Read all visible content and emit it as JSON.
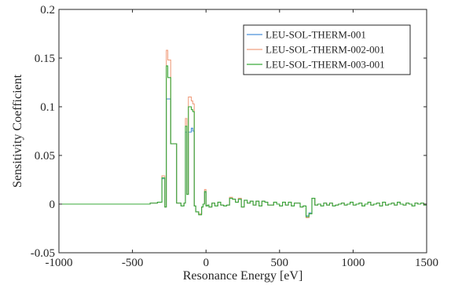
{
  "chart_data": {
    "type": "line",
    "title": "",
    "xlabel": "Resonance Energy [eV]",
    "ylabel": "Sensitivity Coefficient",
    "xlim": [
      -1000,
      1500
    ],
    "ylim": [
      -0.05,
      0.2
    ],
    "xticks": [
      -1000,
      -500,
      0,
      500,
      1000,
      1500
    ],
    "xtick_labels": [
      "-1000",
      "-500",
      "0",
      "500",
      "1000",
      "1500"
    ],
    "yticks": [
      -0.05,
      0,
      0.05,
      0.1,
      0.15,
      0.2
    ],
    "ytick_labels": [
      "-0.05",
      "0",
      "0.05",
      "0.1",
      "0.15",
      "0.2"
    ],
    "grid": false,
    "legend_position": "top-right",
    "step": true,
    "x": [
      -1000,
      -420,
      -380,
      -330,
      -300,
      -280,
      -270,
      -260,
      -240,
      -200,
      -170,
      -150,
      -140,
      -130,
      -120,
      -100,
      -90,
      -80,
      -70,
      -50,
      -30,
      -20,
      -10,
      0,
      10,
      20,
      40,
      60,
      80,
      100,
      120,
      140,
      160,
      180,
      200,
      220,
      240,
      260,
      280,
      300,
      320,
      340,
      360,
      380,
      400,
      420,
      440,
      460,
      480,
      500,
      520,
      540,
      560,
      580,
      600,
      620,
      640,
      660,
      680,
      700,
      720,
      740,
      760,
      780,
      800,
      820,
      840,
      860,
      880,
      900,
      920,
      940,
      960,
      980,
      1000,
      1020,
      1040,
      1060,
      1080,
      1100,
      1120,
      1140,
      1160,
      1180,
      1200,
      1220,
      1240,
      1260,
      1280,
      1300,
      1320,
      1340,
      1360,
      1380,
      1400,
      1420,
      1440,
      1460,
      1480,
      1500
    ],
    "series": [
      {
        "name": "LEU-SOL-THERM-001",
        "color": "#4a90d9",
        "values": [
          0,
          0,
          0.001,
          0.002,
          0.026,
          -0.003,
          0.108,
          0.108,
          0.062,
          0.001,
          -0.002,
          0.001,
          0.074,
          0.01,
          0.074,
          0.078,
          0.075,
          -0.002,
          -0.008,
          -0.01,
          -0.003,
          0,
          0.012,
          -0.002,
          -0.001,
          -0.003,
          0.001,
          -0.002,
          0.002,
          -0.001,
          -0.002,
          -0.001,
          0.006,
          0.005,
          0.002,
          0.005,
          -0.003,
          0.004,
          0.001,
          0.003,
          -0.001,
          0.003,
          -0.002,
          0.003,
          0.002,
          -0.001,
          -0.001,
          0.002,
          0,
          -0.002,
          0.002,
          -0.001,
          0.002,
          -0.002,
          0.001,
          0.001,
          -0.003,
          -0.002,
          -0.012,
          -0.009,
          0.006,
          -0.001,
          0,
          -0.002,
          0.001,
          -0.001,
          0.001,
          -0.002,
          -0.001,
          0,
          0.001,
          -0.001,
          0,
          0.002,
          -0.001,
          0,
          0.001,
          -0.002,
          0,
          0.002,
          -0.001,
          0,
          0.001,
          -0.002,
          0.002,
          -0.001,
          0,
          0.001,
          -0.001,
          0.002,
          0,
          -0.001,
          0.001,
          0,
          -0.002,
          0.001,
          0,
          0.001,
          -0.001,
          -0.001
        ]
      },
      {
        "name": "LEU-SOL-THERM-002-001",
        "color": "#f0a080",
        "values": [
          0,
          0,
          0.001,
          0.002,
          0.029,
          -0.003,
          0.158,
          0.148,
          0.062,
          0.001,
          -0.002,
          0.001,
          0.088,
          0.01,
          0.11,
          0.106,
          0.103,
          -0.002,
          -0.008,
          -0.01,
          -0.003,
          0,
          0.015,
          -0.002,
          -0.001,
          -0.003,
          0.001,
          -0.002,
          0.002,
          -0.001,
          -0.002,
          -0.001,
          0.007,
          0.005,
          0.002,
          0.006,
          -0.003,
          0.004,
          0.001,
          0.003,
          -0.001,
          0.003,
          -0.002,
          0.003,
          0.002,
          -0.001,
          -0.001,
          0.002,
          0,
          -0.002,
          0.002,
          -0.001,
          0.002,
          -0.002,
          0.001,
          0.001,
          -0.003,
          -0.002,
          -0.014,
          -0.01,
          0.006,
          -0.001,
          0,
          -0.002,
          0.001,
          -0.001,
          0.001,
          -0.002,
          -0.001,
          0,
          0.001,
          -0.001,
          0,
          0.002,
          -0.001,
          0,
          0.001,
          -0.002,
          0,
          0.002,
          -0.001,
          0,
          0.001,
          -0.002,
          0.002,
          -0.001,
          0,
          0.001,
          -0.001,
          0.002,
          0,
          -0.001,
          0.001,
          0,
          -0.002,
          0.001,
          0,
          0.001,
          -0.001,
          -0.001
        ]
      },
      {
        "name": "LEU-SOL-THERM-003-001",
        "color": "#3aaa3a",
        "values": [
          0,
          0,
          0.001,
          0.002,
          0.027,
          -0.003,
          0.142,
          0.13,
          0.062,
          0.001,
          -0.002,
          0.001,
          0.08,
          0.01,
          0.1,
          0.097,
          0.095,
          -0.002,
          -0.008,
          -0.011,
          -0.003,
          0,
          0.013,
          -0.002,
          -0.001,
          -0.003,
          0.001,
          -0.002,
          0.002,
          -0.001,
          -0.002,
          -0.001,
          0.006,
          0.005,
          0.002,
          0.005,
          -0.003,
          0.004,
          0.001,
          0.003,
          -0.001,
          0.003,
          -0.002,
          0.003,
          0.002,
          -0.001,
          -0.001,
          0.002,
          0,
          -0.002,
          0.002,
          -0.001,
          0.002,
          -0.002,
          0.001,
          0.001,
          -0.003,
          -0.002,
          -0.013,
          -0.01,
          0.006,
          -0.001,
          0,
          -0.002,
          0.001,
          -0.001,
          0.001,
          -0.002,
          -0.001,
          0,
          0.001,
          -0.001,
          0,
          0.002,
          -0.001,
          0,
          0.001,
          -0.002,
          0,
          0.002,
          -0.001,
          0,
          0.001,
          -0.002,
          0.002,
          -0.001,
          0,
          0.001,
          -0.001,
          0.002,
          0,
          -0.001,
          0.001,
          0,
          -0.002,
          0.001,
          0,
          0.001,
          -0.001,
          -0.001
        ]
      }
    ]
  }
}
